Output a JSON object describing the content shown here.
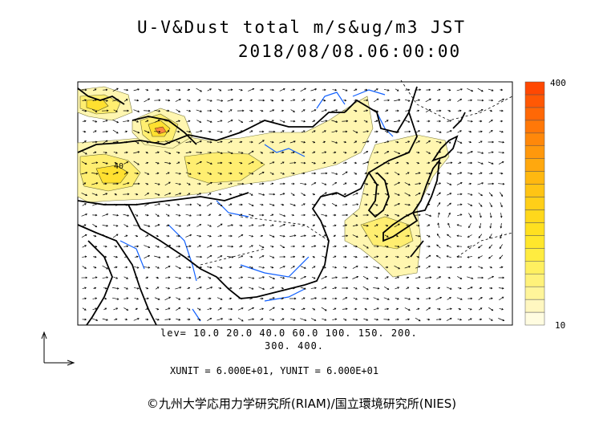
{
  "title": "U-V&Dust total m/s&ug/m3 JST",
  "datetime": "2018/08/08.06:00:00",
  "colorbar": {
    "top_label": "400",
    "bottom_label": "10",
    "colors": [
      "#fffce0",
      "#fff7c0",
      "#fff59a",
      "#fff27a",
      "#fff060",
      "#ffec40",
      "#ffe72c",
      "#ffe020",
      "#ffd81c",
      "#ffcf18",
      "#ffc414",
      "#ffb810",
      "#ffa80e",
      "#ff980c",
      "#ff880a",
      "#ff7808",
      "#ff6806",
      "#ff5804",
      "#ff4802"
    ]
  },
  "levels_line1": "lev= 10.0 20.0 40.0 60.0 100. 150. 200.",
  "levels_line2": "300. 400.",
  "units": "XUNIT = 6.000E+01, YUNIT = 6.000E+01",
  "contour_label": "40",
  "credit": "©九州大学応用力学研究所(RIAM)/国立環境研究所(NIES)",
  "colors": {
    "dust_light": "#fff6b0",
    "dust_mid": "#ffee70",
    "dust_high": "#ffe030",
    "dust_peak": "#ff8a40",
    "coast": "#000000",
    "rivers": "#1060ff"
  }
}
